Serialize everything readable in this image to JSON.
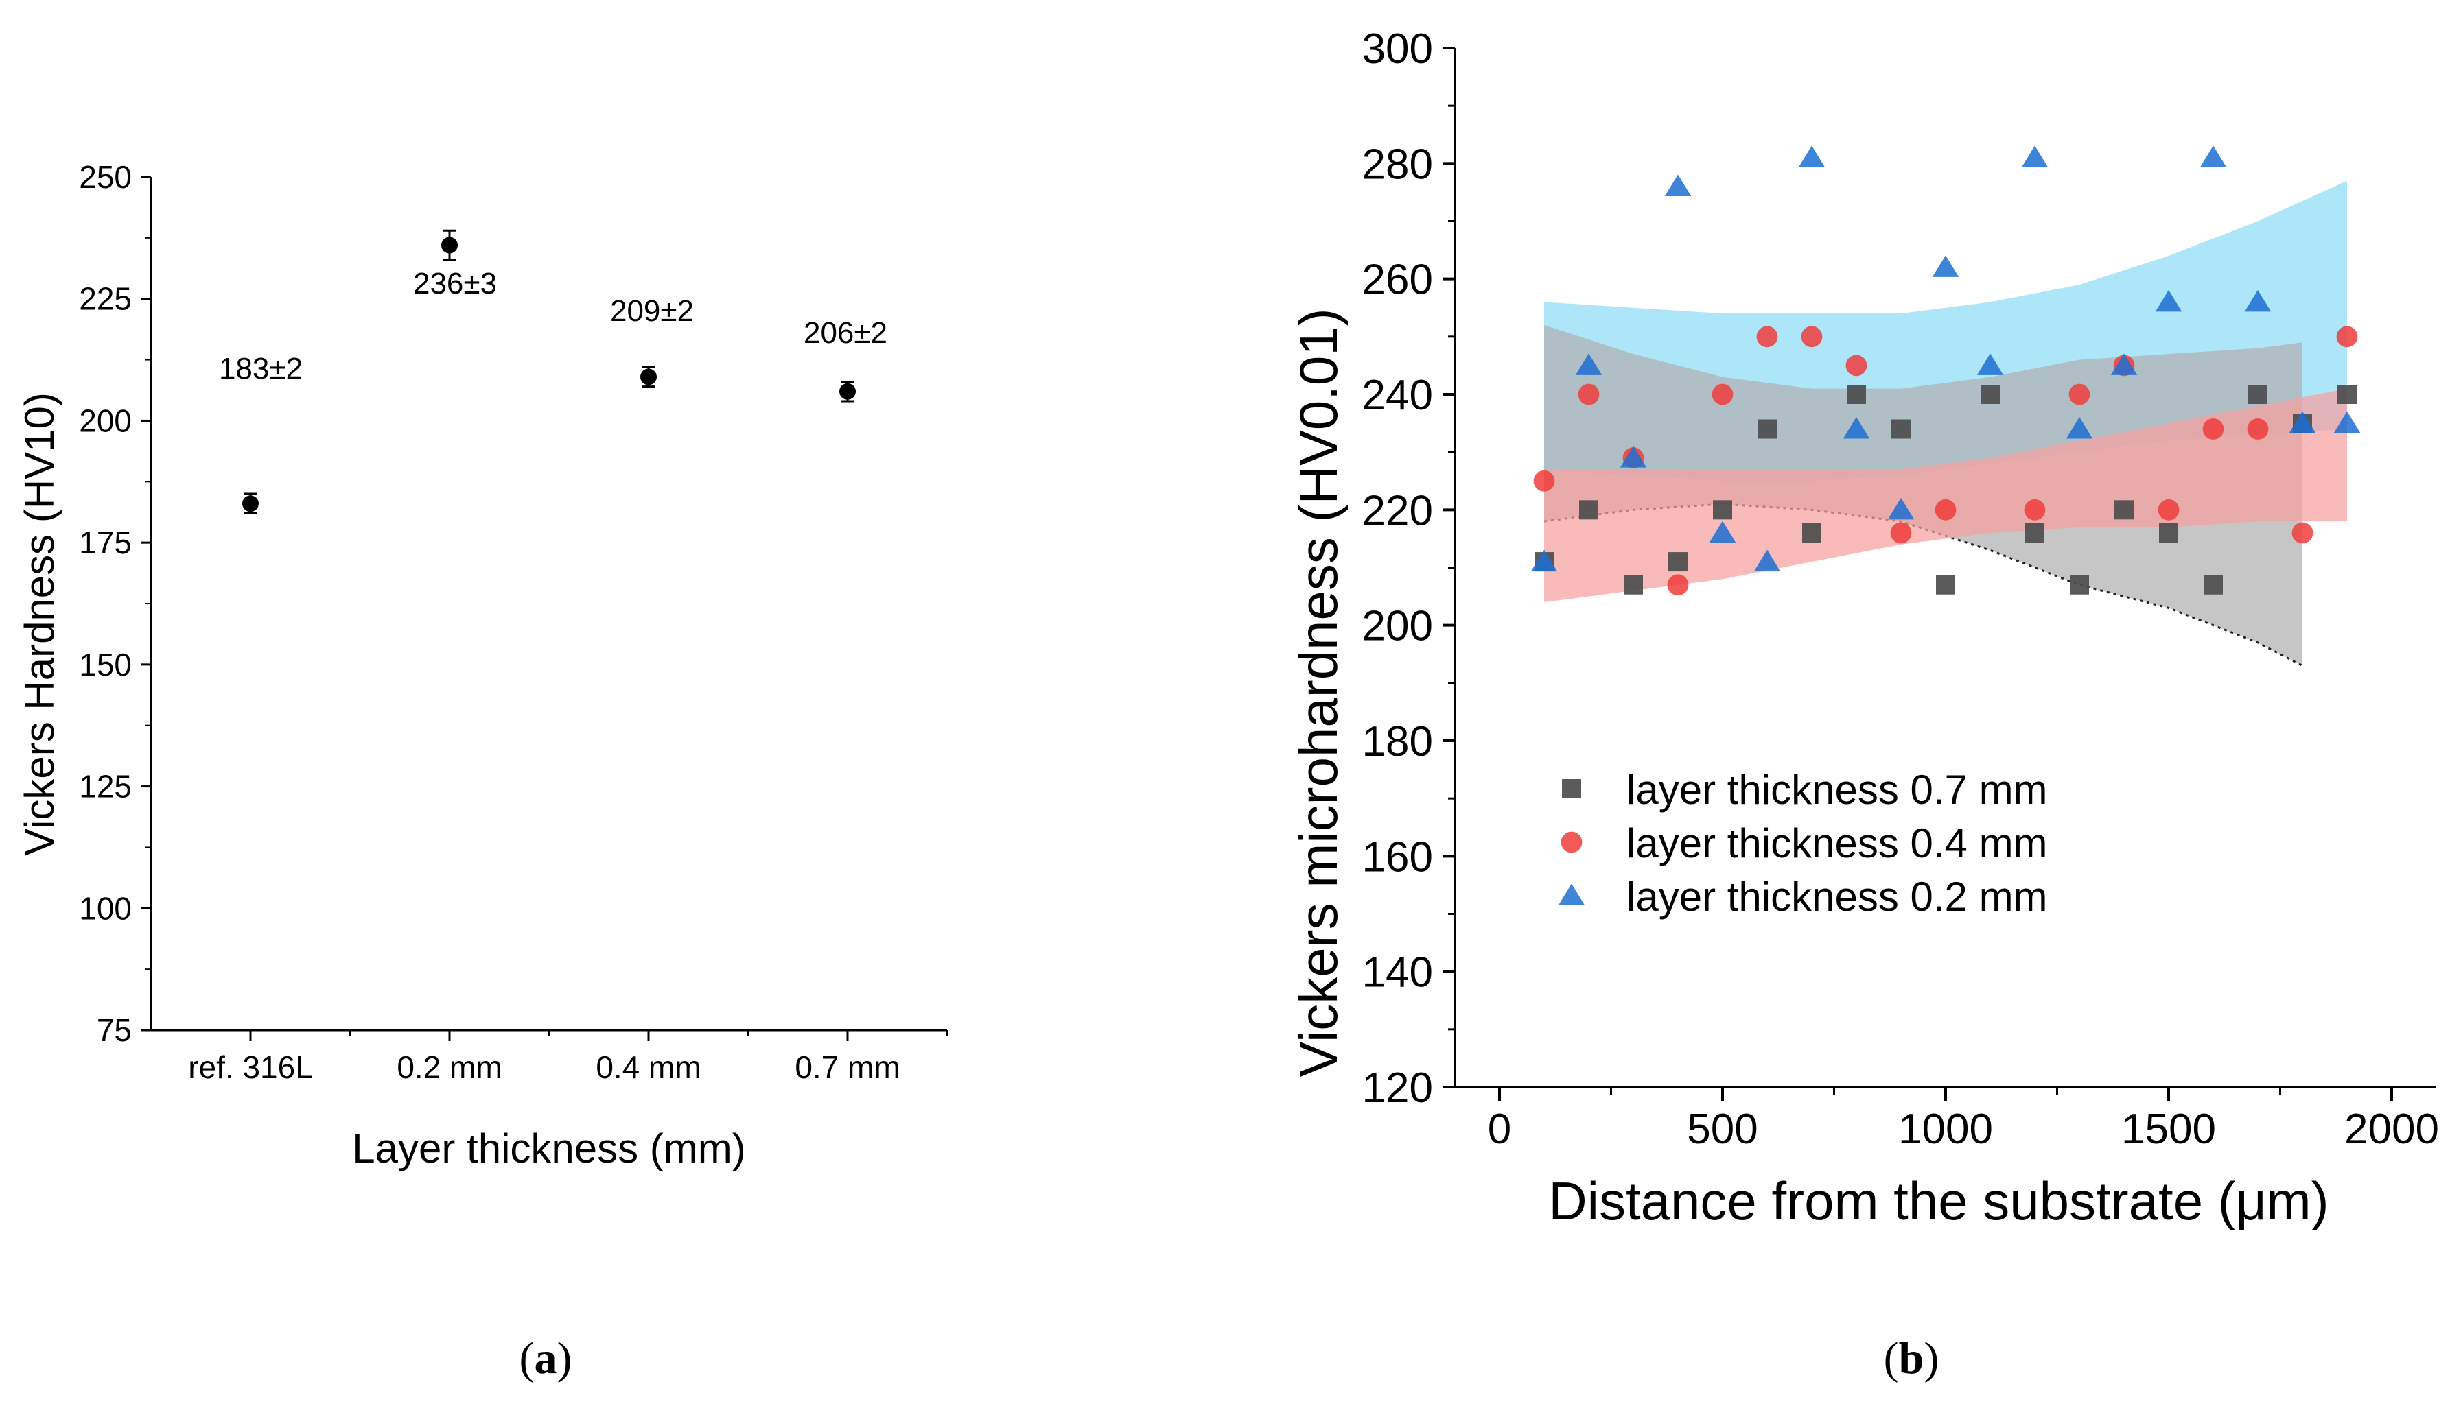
{
  "panel_a": {
    "label_open": "(",
    "label_letter": "a",
    "label_close": ")"
  },
  "panel_b": {
    "label_open": "(",
    "label_letter": "b",
    "label_close": ")"
  },
  "chart_data": [
    {
      "type": "scatter",
      "title": "",
      "xlabel": "Layer thickness (mm)",
      "ylabel": "Vickers Hardness (HV10)",
      "ylim": [
        75,
        250
      ],
      "yticks": [
        75,
        100,
        125,
        150,
        175,
        200,
        225,
        250
      ],
      "categories": [
        "ref. 316L",
        "0.2 mm",
        "0.4 mm",
        "0.7 mm"
      ],
      "values": [
        183,
        236,
        209,
        206
      ],
      "errors": [
        2,
        3,
        2,
        2
      ],
      "data_labels": [
        "183±2",
        "236±3",
        "209±2",
        "206±2"
      ],
      "marker_color": "#000000",
      "grid": false,
      "legend": "none"
    },
    {
      "type": "scatter",
      "title": "",
      "xlabel": "Distance from the substrate (μm)",
      "ylabel": "Vickers microhardness (HV0.01)",
      "xlim": [
        -100,
        2100
      ],
      "ylim": [
        120,
        300
      ],
      "xticks": [
        0,
        500,
        1000,
        1500,
        2000
      ],
      "yticks": [
        120,
        140,
        160,
        180,
        200,
        220,
        240,
        260,
        280,
        300
      ],
      "grid": false,
      "legend": "bottom-left",
      "series": [
        {
          "name": "layer thickness 0.7 mm",
          "marker": "square",
          "color": "#4d4d4d",
          "x": [
            100,
            200,
            300,
            400,
            500,
            600,
            700,
            800,
            900,
            1000,
            1100,
            1200,
            1300,
            1400,
            1500,
            1600,
            1700,
            1800,
            1900
          ],
          "y": [
            211,
            220,
            207,
            211,
            220,
            234,
            216,
            240,
            234,
            207,
            240,
            216,
            207,
            220,
            216,
            207,
            240,
            235,
            240
          ],
          "band_color": "#b0b0b0",
          "band_x": [
            100,
            300,
            500,
            700,
            900,
            1100,
            1300,
            1500,
            1700,
            1800
          ],
          "band_upper": [
            252,
            247,
            243,
            241,
            241,
            243,
            246,
            247,
            248,
            249
          ],
          "band_lower": [
            218,
            220,
            221,
            220,
            218,
            213,
            207,
            203,
            197,
            193
          ]
        },
        {
          "name": "layer thickness 0.4 mm",
          "marker": "circle",
          "color": "#f03c3c",
          "x": [
            100,
            200,
            300,
            400,
            500,
            600,
            700,
            800,
            900,
            1000,
            1200,
            1300,
            1400,
            1500,
            1600,
            1700,
            1800,
            1900
          ],
          "y": [
            225,
            240,
            229,
            207,
            240,
            250,
            250,
            245,
            216,
            220,
            220,
            240,
            245,
            220,
            234,
            234,
            216,
            250
          ],
          "band_color": "#f7a0a0",
          "band_x": [
            100,
            300,
            500,
            700,
            900,
            1100,
            1300,
            1500,
            1700,
            1900
          ],
          "band_upper": [
            227,
            227,
            227,
            227,
            227,
            229,
            232,
            235,
            238,
            241
          ],
          "band_lower": [
            204,
            206,
            208,
            211,
            214,
            216,
            217,
            217,
            218,
            218
          ]
        },
        {
          "name": "layer thickness 0.2 mm",
          "marker": "triangle",
          "color": "#1c6fd1",
          "x": [
            100,
            200,
            300,
            400,
            500,
            600,
            700,
            800,
            900,
            1000,
            1100,
            1200,
            1300,
            1400,
            1500,
            1600,
            1700,
            1800,
            1900
          ],
          "y": [
            211,
            245,
            229,
            276,
            216,
            211,
            281,
            234,
            220,
            262,
            245,
            281,
            234,
            245,
            256,
            281,
            256,
            235,
            235
          ],
          "band_color": "#8fdcf7",
          "band_x": [
            100,
            300,
            500,
            700,
            900,
            1100,
            1300,
            1500,
            1700,
            1900
          ],
          "band_upper": [
            256,
            255,
            254,
            254,
            254,
            256,
            259,
            264,
            270,
            277
          ],
          "band_lower": [
            227,
            226,
            225,
            225,
            226,
            228,
            230,
            232,
            233,
            234
          ]
        }
      ]
    }
  ]
}
